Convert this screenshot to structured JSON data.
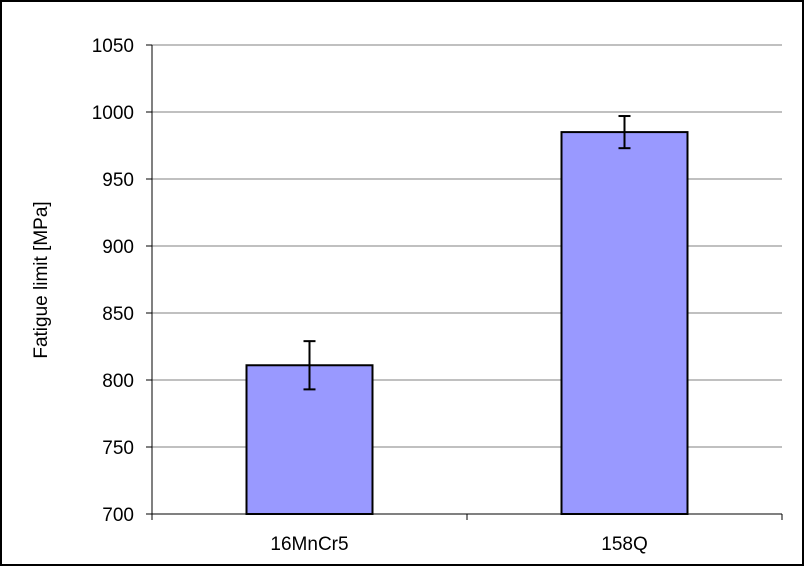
{
  "chart_data": {
    "type": "bar",
    "title": "",
    "xlabel": "",
    "ylabel": "Fatigue limit [MPa]",
    "categories": [
      "16MnCr5",
      "158Q"
    ],
    "values": [
      811,
      985
    ],
    "error": [
      18,
      12
    ],
    "ylim": [
      700,
      1050
    ],
    "yticks": [
      700,
      750,
      800,
      850,
      900,
      950,
      1000,
      1050
    ],
    "grid": true,
    "legend": "none",
    "bar_color": "#9999ff"
  }
}
